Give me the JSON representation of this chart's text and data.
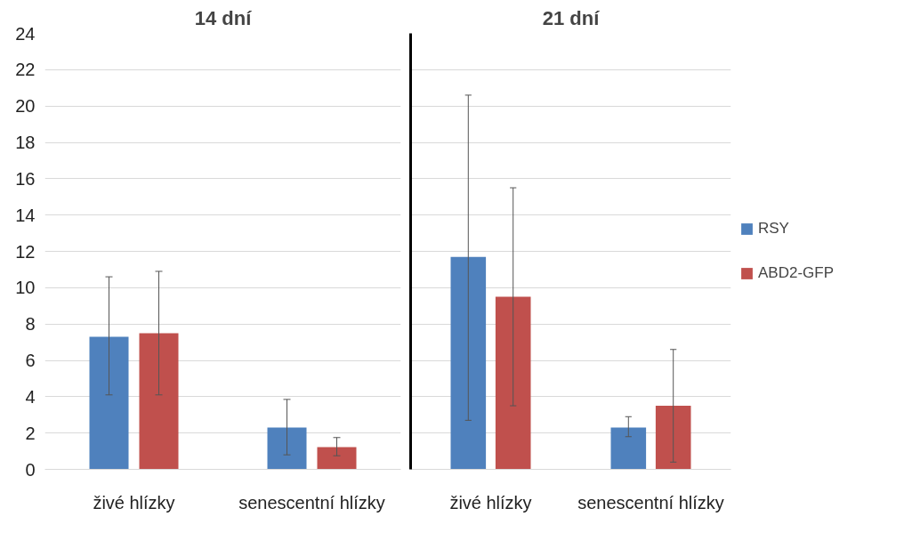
{
  "chart_data": [
    {
      "type": "bar",
      "title": "14 dní",
      "categories": [
        "živé hlízky",
        "senescentní hlízky"
      ],
      "ylim": [
        0,
        24
      ],
      "yticks": [
        0,
        2,
        4,
        6,
        8,
        10,
        12,
        14,
        16,
        18,
        20,
        22,
        24
      ],
      "grid": "y",
      "legend": false,
      "series": [
        {
          "color": "#4f81bd",
          "values": [
            7.3,
            2.3
          ],
          "errors": [
            [
              4.1,
              10.6
            ],
            [
              0.8,
              3.85
            ]
          ]
        },
        {
          "color": "#c0504d",
          "values": [
            7.5,
            1.23
          ],
          "errors": [
            [
              4.1,
              10.9
            ],
            [
              0.75,
              1.75
            ]
          ]
        }
      ]
    },
    {
      "type": "bar",
      "title": "21 dní",
      "categories": [
        "živé hlízky",
        "senescentní hlízky"
      ],
      "ylim": [
        0,
        24
      ],
      "yticks": [
        0,
        2,
        4,
        6,
        8,
        10,
        12,
        14,
        16,
        18,
        20,
        22,
        24
      ],
      "grid": "y",
      "legend": "right",
      "tick_labels": "x",
      "series": [
        {
          "name": "RSY",
          "color": "#4f81bd",
          "values": [
            11.7,
            2.3
          ],
          "errors": [
            [
              2.7,
              20.6
            ],
            [
              1.8,
              2.9
            ]
          ]
        },
        {
          "name": "ABD2-GFP",
          "color": "#c0504d",
          "values": [
            9.5,
            3.5
          ],
          "errors": [
            [
              3.5,
              15.5
            ],
            [
              0.4,
              6.6
            ]
          ]
        }
      ]
    }
  ]
}
